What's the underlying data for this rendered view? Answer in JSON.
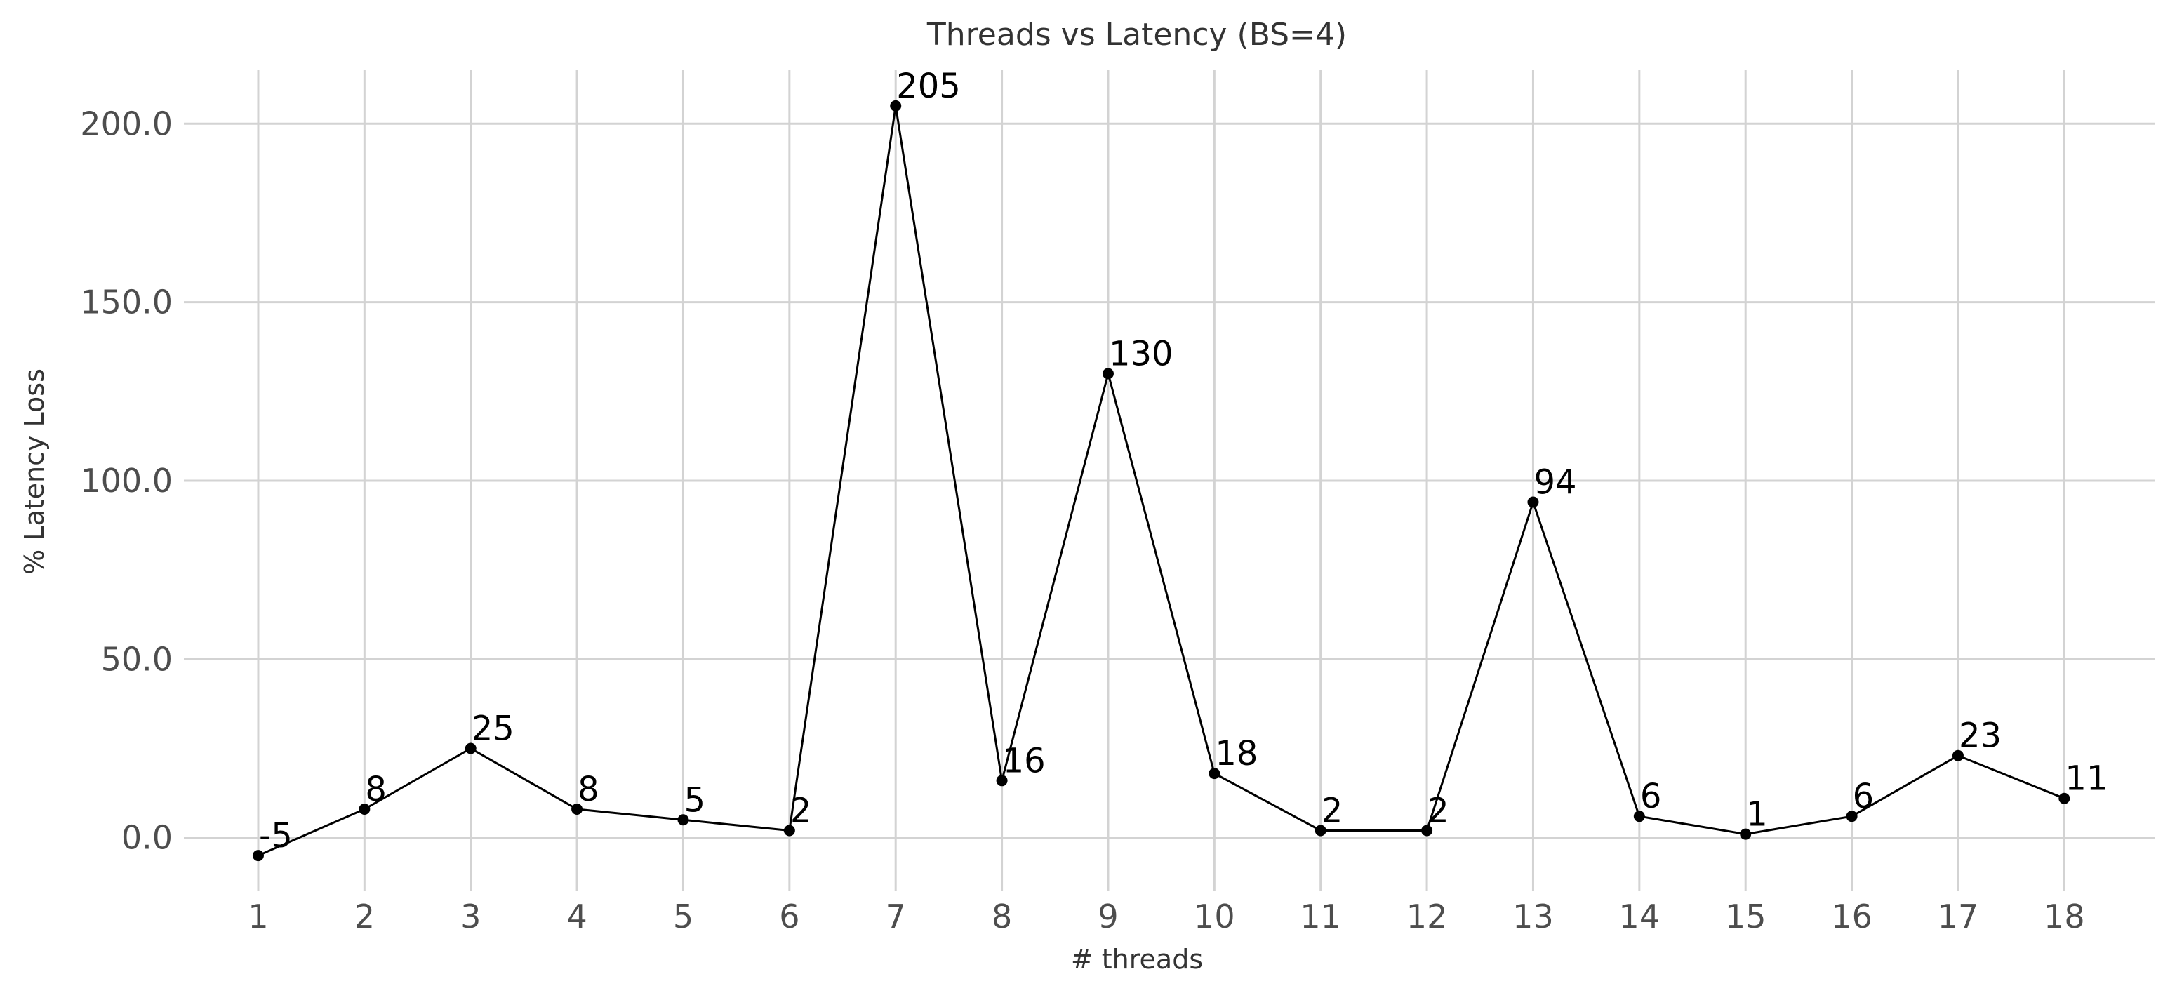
{
  "chart_data": {
    "type": "line",
    "title": "Threads vs Latency (BS=4)",
    "xlabel": "# threads",
    "ylabel": "% Latency Loss",
    "x": [
      1,
      2,
      3,
      4,
      5,
      6,
      7,
      8,
      9,
      10,
      11,
      12,
      13,
      14,
      15,
      16,
      17,
      18
    ],
    "x_tick_labels": [
      "1",
      "2",
      "3",
      "4",
      "5",
      "6",
      "7",
      "8",
      "9",
      "10",
      "11",
      "12",
      "13",
      "14",
      "15",
      "16",
      "17",
      "18"
    ],
    "y_ticks": [
      0,
      50,
      100,
      150,
      200
    ],
    "y_tick_labels": [
      "0.0",
      "50.0",
      "100.0",
      "150.0",
      "200.0"
    ],
    "series": [
      {
        "values": [
          -5,
          8,
          25,
          8,
          5,
          2,
          205,
          16,
          130,
          18,
          2,
          2,
          94,
          6,
          1,
          6,
          23,
          11
        ],
        "labels": [
          "-5",
          "8",
          "25",
          "8",
          "5",
          "2",
          "205",
          "16",
          "130",
          "18",
          "2",
          "2",
          "94",
          "6",
          "1",
          "6",
          "23",
          "11"
        ]
      }
    ],
    "xlim": [
      0.3,
      18.85
    ],
    "ylim": [
      -15,
      215
    ],
    "grid": true,
    "line_color": "#000000",
    "grid_color": "#d3d3d3"
  }
}
